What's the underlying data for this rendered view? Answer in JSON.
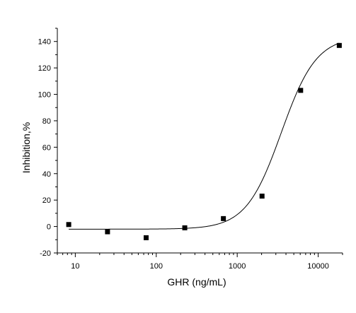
{
  "chart_data": {
    "type": "scatter",
    "xlabel": "GHR (ng/mL)",
    "ylabel": "Inhibition,%",
    "x_scale": "log",
    "xlim": [
      6,
      20000
    ],
    "ylim": [
      -20,
      150
    ],
    "x_ticks": [
      10,
      100,
      1000,
      10000
    ],
    "x_tick_labels": [
      "10",
      "100",
      "1000",
      "10000"
    ],
    "y_ticks": [
      -20,
      0,
      20,
      40,
      60,
      80,
      100,
      120,
      140
    ],
    "y_tick_labels": [
      "-20",
      "0",
      "20",
      "40",
      "60",
      "80",
      "100",
      "120",
      "140"
    ],
    "grid": false,
    "series": [
      {
        "points": [
          {
            "x": 8.3,
            "y": 1.5
          },
          {
            "x": 25,
            "y": -4
          },
          {
            "x": 75,
            "y": -8.5
          },
          {
            "x": 225,
            "y": -1
          },
          {
            "x": 675,
            "y": 6
          },
          {
            "x": 2025,
            "y": 23
          },
          {
            "x": 6075,
            "y": 103
          },
          {
            "x": 18225,
            "y": 137
          }
        ]
      }
    ],
    "fit_curve": {
      "model": "4PL",
      "bottom": -2,
      "top": 144,
      "ec50": 3500,
      "hill": 2.0,
      "x_range": [
        8.3,
        18225
      ]
    }
  }
}
